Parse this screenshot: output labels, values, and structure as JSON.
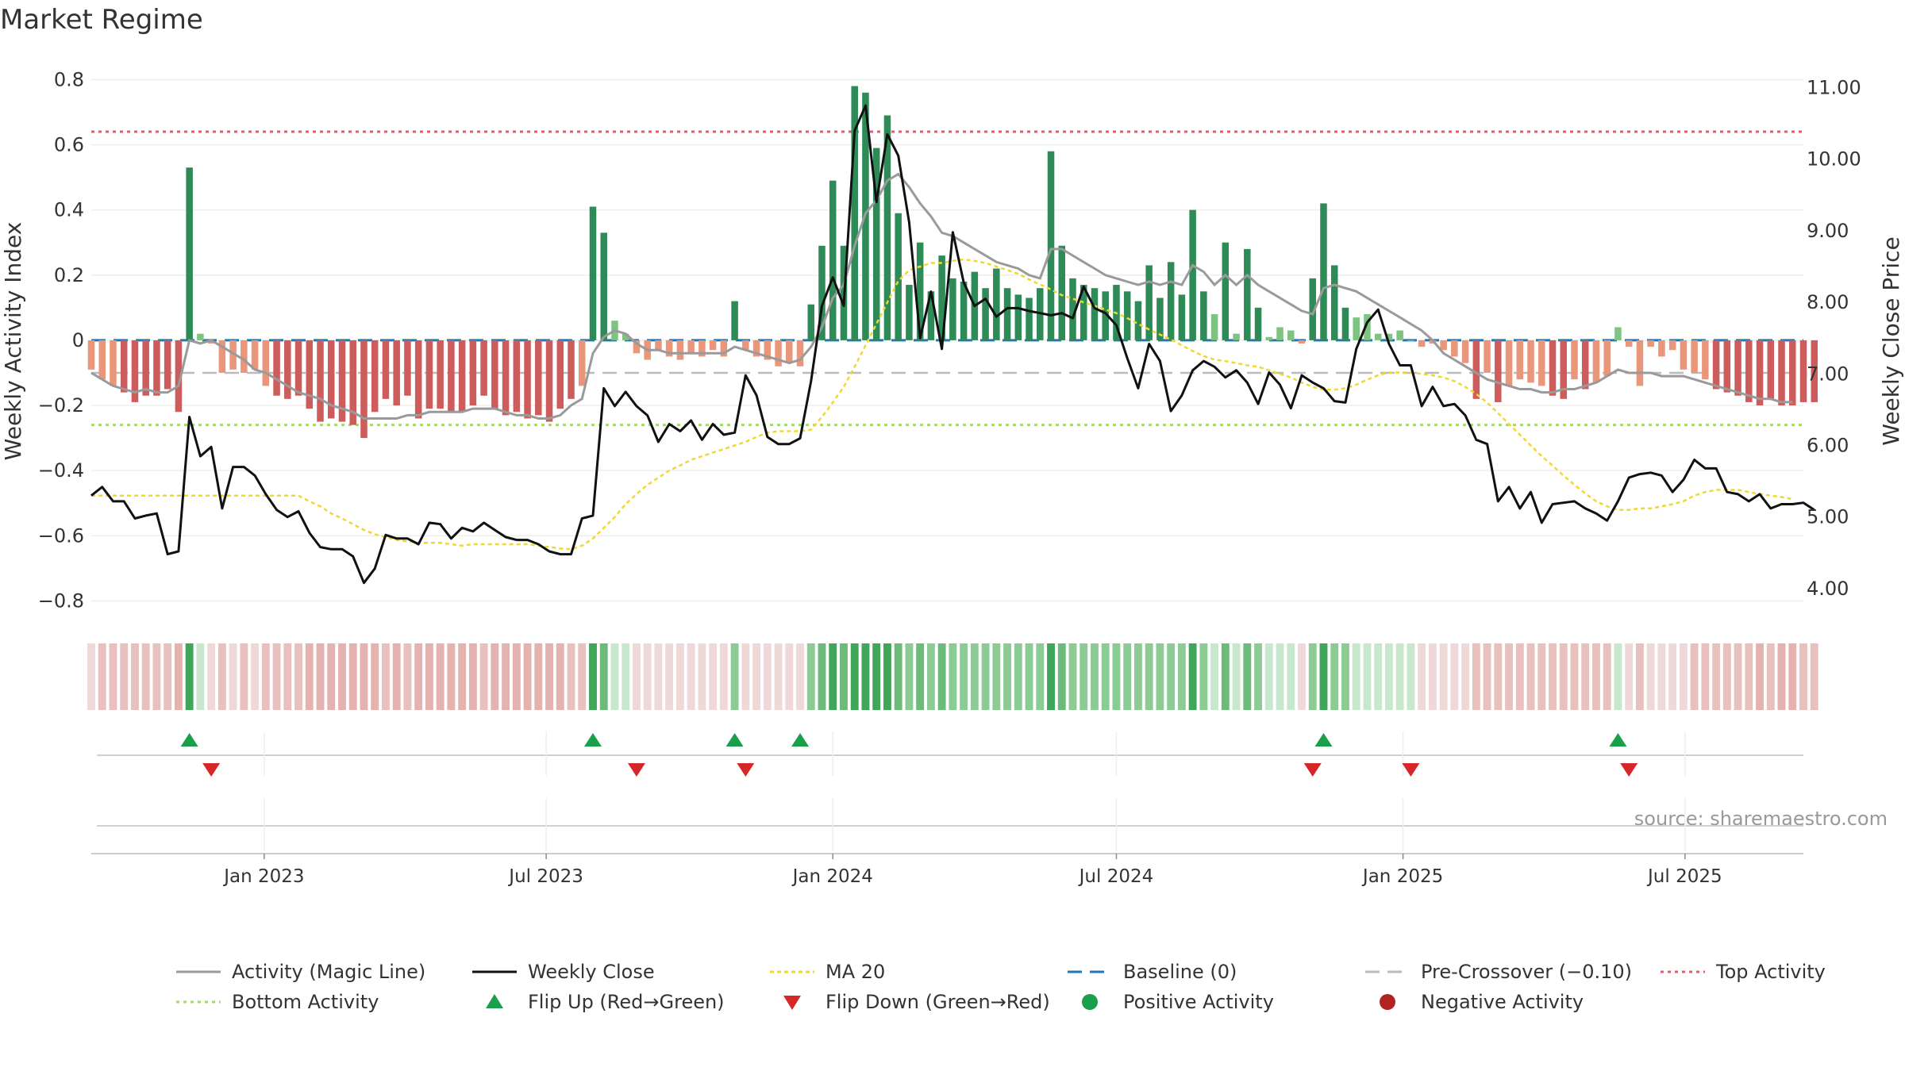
{
  "title": "Market Regime",
  "source_note": "source: sharemaestro.com",
  "chart_data": {
    "type": "bar",
    "title": "Market Regime",
    "left_axis": {
      "label": "Weekly Activity Index",
      "range": [
        -0.85,
        0.83
      ],
      "ticks": [
        0.8,
        0.6,
        0.4,
        0.2,
        0,
        -0.2,
        -0.4,
        -0.6,
        -0.8
      ],
      "tick_labels": [
        "0.8",
        "0.6",
        "0.4",
        "0.2",
        "0",
        "−0.2",
        "−0.4",
        "−0.6",
        "−0.8"
      ]
    },
    "right_axis": {
      "label": "Weekly Close Price",
      "range": [
        3.6,
        11.25
      ],
      "ticks": [
        11,
        10,
        9,
        8,
        7,
        6,
        5,
        4
      ],
      "tick_labels": [
        "11.00",
        "10.00",
        "9.00",
        "8.00",
        "7.00",
        "6.00",
        "5.00",
        "4.00"
      ]
    },
    "x_axis": {
      "range": [
        "2022-09-12",
        "2025-09-15"
      ],
      "ticks": [
        "2023-01-01",
        "2023-07-01",
        "2024-01-01",
        "2024-07-01",
        "2025-01-01",
        "2025-07-01"
      ],
      "tick_labels": [
        "Jan 2023",
        "Jul 2023",
        "Jan 2024",
        "Jul 2024",
        "Jan 2025",
        "Jul 2025"
      ]
    },
    "grid": true,
    "legend_position": "bottom",
    "reference_lines": {
      "top_activity": 0.64,
      "bottom_activity": -0.26,
      "baseline": 0,
      "pre_crossover": -0.1
    },
    "colors": {
      "strong_positive": "#2e8b57",
      "weak_positive": "#7cc47f",
      "strong_negative": "#cd5c5c",
      "weak_negative": "#e9967a",
      "magic_line": "#9a9a9a",
      "close": "#111111",
      "ma20": "#f0d832",
      "baseline": "#1f77b4",
      "pre_crossover": "#bbbbbb",
      "top": "#e05c6e",
      "bottom": "#a6d96a",
      "flip_up": "#1a9f4a",
      "flip_down": "#d62728",
      "positive_dot": "#1a9f4a",
      "negative_dot": "#b22222"
    },
    "weeks_start": "2022-09-12",
    "week_count": 157,
    "activity": [
      -0.09,
      -0.12,
      -0.14,
      -0.16,
      -0.19,
      -0.17,
      -0.17,
      -0.15,
      -0.22,
      0.53,
      0.02,
      -0.01,
      -0.1,
      -0.09,
      -0.1,
      -0.09,
      -0.14,
      -0.17,
      -0.18,
      -0.17,
      -0.21,
      -0.25,
      -0.24,
      -0.25,
      -0.26,
      -0.3,
      -0.22,
      -0.18,
      -0.2,
      -0.17,
      -0.24,
      -0.21,
      -0.21,
      -0.22,
      -0.22,
      -0.2,
      -0.17,
      -0.21,
      -0.23,
      -0.22,
      -0.24,
      -0.23,
      -0.25,
      -0.21,
      -0.18,
      -0.14,
      0.41,
      0.33,
      0.06,
      0.02,
      -0.04,
      -0.06,
      -0.03,
      -0.05,
      -0.06,
      -0.04,
      -0.05,
      -0.03,
      -0.05,
      0.12,
      -0.03,
      -0.05,
      -0.06,
      -0.08,
      -0.07,
      -0.08,
      0.11,
      0.29,
      0.49,
      0.29,
      0.78,
      0.76,
      0.59,
      0.69,
      0.39,
      0.17,
      0.3,
      0.15,
      0.26,
      0.19,
      0.18,
      0.21,
      0.16,
      0.22,
      0.16,
      0.14,
      0.13,
      0.16,
      0.58,
      0.29,
      0.19,
      0.17,
      0.16,
      0.15,
      0.17,
      0.15,
      0.12,
      0.23,
      0.13,
      0.24,
      0.14,
      0.4,
      0.15,
      0.08,
      0.3,
      0.02,
      0.28,
      0.1,
      0.01,
      0.04,
      0.03,
      -0.01,
      0.19,
      0.42,
      0.23,
      0.1,
      0.07,
      0.08,
      0.02,
      0.02,
      0.03,
      0.0,
      -0.02,
      -0.01,
      -0.03,
      -0.05,
      -0.07,
      -0.18,
      -0.1,
      -0.19,
      -0.14,
      -0.12,
      -0.13,
      -0.14,
      -0.17,
      -0.18,
      -0.12,
      -0.15,
      -0.13,
      -0.11,
      0.04,
      -0.02,
      -0.14,
      -0.02,
      -0.05,
      -0.03,
      -0.09,
      -0.1,
      -0.12,
      -0.15,
      -0.16,
      -0.17,
      -0.19,
      -0.2,
      -0.18,
      -0.2,
      -0.2,
      -0.19,
      -0.19
    ],
    "magic_line": [
      -0.1,
      -0.12,
      -0.14,
      -0.15,
      -0.16,
      -0.15,
      -0.16,
      -0.16,
      -0.14,
      0.0,
      -0.01,
      0.0,
      -0.02,
      -0.04,
      -0.06,
      -0.09,
      -0.1,
      -0.12,
      -0.14,
      -0.16,
      -0.17,
      -0.18,
      -0.2,
      -0.21,
      -0.22,
      -0.24,
      -0.24,
      -0.24,
      -0.24,
      -0.23,
      -0.23,
      -0.22,
      -0.22,
      -0.22,
      -0.22,
      -0.21,
      -0.21,
      -0.21,
      -0.22,
      -0.23,
      -0.23,
      -0.24,
      -0.24,
      -0.23,
      -0.2,
      -0.18,
      -0.04,
      0.01,
      0.03,
      0.02,
      -0.01,
      -0.03,
      -0.03,
      -0.04,
      -0.04,
      -0.04,
      -0.04,
      -0.04,
      -0.04,
      -0.02,
      -0.03,
      -0.04,
      -0.05,
      -0.06,
      -0.07,
      -0.06,
      -0.02,
      0.04,
      0.13,
      0.17,
      0.29,
      0.39,
      0.43,
      0.49,
      0.51,
      0.47,
      0.42,
      0.38,
      0.33,
      0.32,
      0.3,
      0.28,
      0.26,
      0.24,
      0.23,
      0.22,
      0.2,
      0.19,
      0.28,
      0.28,
      0.26,
      0.24,
      0.22,
      0.2,
      0.19,
      0.18,
      0.17,
      0.18,
      0.17,
      0.18,
      0.17,
      0.23,
      0.21,
      0.17,
      0.2,
      0.17,
      0.2,
      0.17,
      0.15,
      0.13,
      0.11,
      0.09,
      0.08,
      0.16,
      0.17,
      0.16,
      0.15,
      0.13,
      0.11,
      0.09,
      0.07,
      0.05,
      0.03,
      0.0,
      -0.04,
      -0.06,
      -0.08,
      -0.1,
      -0.12,
      -0.13,
      -0.14,
      -0.15,
      -0.15,
      -0.16,
      -0.16,
      -0.15,
      -0.15,
      -0.14,
      -0.13,
      -0.11,
      -0.09,
      -0.1,
      -0.1,
      -0.1,
      -0.11,
      -0.11,
      -0.11,
      -0.12,
      -0.13,
      -0.14,
      -0.15,
      -0.16,
      -0.17,
      -0.18,
      -0.18,
      -0.19,
      -0.19
    ],
    "weekly_close": [
      5.3,
      5.42,
      5.22,
      5.22,
      4.98,
      5.02,
      5.05,
      4.48,
      4.52,
      6.4,
      5.85,
      5.98,
      5.12,
      5.7,
      5.7,
      5.58,
      5.32,
      5.1,
      5.0,
      5.08,
      4.78,
      4.58,
      4.55,
      4.55,
      4.45,
      4.08,
      4.28,
      4.75,
      4.7,
      4.7,
      4.62,
      4.92,
      4.9,
      4.7,
      4.85,
      4.8,
      4.92,
      4.82,
      4.72,
      4.68,
      4.68,
      4.62,
      4.52,
      4.48,
      4.48,
      4.98,
      5.02,
      6.8,
      6.55,
      6.75,
      6.55,
      6.42,
      6.05,
      6.3,
      6.2,
      6.35,
      6.08,
      6.3,
      6.15,
      6.18,
      6.98,
      6.7,
      6.12,
      6.02,
      6.02,
      6.1,
      6.9,
      7.95,
      8.35,
      7.95,
      10.4,
      10.75,
      9.4,
      10.35,
      10.05,
      9.12,
      7.5,
      8.15,
      7.35,
      8.98,
      8.28,
      7.95,
      8.05,
      7.8,
      7.92,
      7.92,
      7.88,
      7.85,
      7.82,
      7.85,
      7.78,
      8.22,
      7.92,
      7.85,
      7.68,
      7.22,
      6.8,
      7.42,
      7.18,
      6.48,
      6.7,
      7.05,
      7.18,
      7.1,
      6.95,
      7.05,
      6.88,
      6.58,
      7.02,
      6.85,
      6.52,
      6.98,
      6.88,
      6.8,
      6.62,
      6.6,
      7.35,
      7.72,
      7.9,
      7.42,
      7.12,
      7.12,
      6.55,
      6.82,
      6.55,
      6.58,
      6.42,
      6.08,
      6.02,
      5.22,
      5.42,
      5.12,
      5.35,
      4.92,
      5.18,
      5.2,
      5.22,
      5.12,
      5.05,
      4.95,
      5.22,
      5.55,
      5.6,
      5.62,
      5.58,
      5.35,
      5.52,
      5.8,
      5.68,
      5.68,
      5.35,
      5.32,
      5.22,
      5.32,
      5.12,
      5.18,
      5.18,
      5.2,
      5.1
    ],
    "ma20": [
      5.3,
      5.3,
      5.3,
      5.3,
      5.3,
      5.3,
      5.3,
      5.3,
      5.3,
      5.3,
      5.3,
      5.3,
      5.3,
      5.3,
      5.3,
      5.3,
      5.3,
      5.3,
      5.3,
      5.3,
      5.22,
      5.15,
      5.05,
      4.98,
      4.9,
      4.82,
      4.76,
      4.72,
      4.68,
      4.66,
      4.64,
      4.64,
      4.64,
      4.62,
      4.6,
      4.62,
      4.62,
      4.62,
      4.62,
      4.62,
      4.62,
      4.6,
      4.58,
      4.56,
      4.55,
      4.6,
      4.7,
      4.85,
      5.0,
      5.18,
      5.32,
      5.45,
      5.55,
      5.65,
      5.72,
      5.8,
      5.85,
      5.9,
      5.95,
      6.0,
      6.05,
      6.12,
      6.18,
      6.2,
      6.2,
      6.2,
      6.22,
      6.4,
      6.6,
      6.82,
      7.1,
      7.4,
      7.7,
      8.0,
      8.3,
      8.45,
      8.5,
      8.55,
      8.55,
      8.58,
      8.6,
      8.58,
      8.55,
      8.5,
      8.45,
      8.4,
      8.32,
      8.25,
      8.18,
      8.1,
      8.05,
      8.0,
      7.95,
      7.9,
      7.85,
      7.78,
      7.7,
      7.62,
      7.55,
      7.48,
      7.4,
      7.32,
      7.25,
      7.2,
      7.18,
      7.15,
      7.12,
      7.1,
      7.05,
      7.0,
      6.95,
      6.88,
      6.82,
      6.78,
      6.78,
      6.8,
      6.85,
      6.92,
      6.98,
      7.02,
      7.02,
      7.02,
      7.0,
      6.98,
      6.95,
      6.9,
      6.82,
      6.72,
      6.6,
      6.45,
      6.3,
      6.15,
      6.0,
      5.85,
      5.72,
      5.58,
      5.45,
      5.33,
      5.22,
      5.15,
      5.1,
      5.1,
      5.12,
      5.12,
      5.15,
      5.18,
      5.22,
      5.3,
      5.35,
      5.38,
      5.38,
      5.38,
      5.35,
      5.32,
      5.3,
      5.28,
      5.25
    ],
    "flip_up_weeks": [
      9,
      46,
      59,
      65,
      113,
      140
    ],
    "flip_down_weeks": [
      11,
      50,
      60,
      112,
      121,
      141
    ]
  },
  "legend": [
    {
      "key": "magic",
      "label": "Activity (Magic Line)",
      "icon": "gray-line"
    },
    {
      "key": "close",
      "label": "Weekly Close",
      "icon": "black-line"
    },
    {
      "key": "ma20",
      "label": "MA 20",
      "icon": "yellow-dotted-line"
    },
    {
      "key": "baseline",
      "label": "Baseline (0)",
      "icon": "blue-dashed-line"
    },
    {
      "key": "pre",
      "label": "Pre-Crossover (−0.10)",
      "icon": "gray-dashed-line"
    },
    {
      "key": "top",
      "label": "Top Activity",
      "icon": "red-dotted-line"
    },
    {
      "key": "bottom",
      "label": "Bottom Activity",
      "icon": "green-dotted-line"
    },
    {
      "key": "flipup",
      "label": "Flip Up (Red→Green)",
      "icon": "green-up-triangle"
    },
    {
      "key": "flipdown",
      "label": "Flip Down (Green→Red)",
      "icon": "red-down-triangle"
    },
    {
      "key": "posdot",
      "label": "Positive Activity",
      "icon": "green-dot"
    },
    {
      "key": "negdot",
      "label": "Negative Activity",
      "icon": "red-dot"
    }
  ]
}
